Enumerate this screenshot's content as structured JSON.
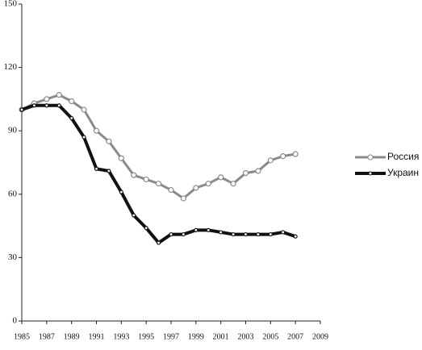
{
  "chart_data": {
    "type": "line",
    "x": [
      1985,
      1986,
      1987,
      1988,
      1989,
      1990,
      1991,
      1992,
      1993,
      1994,
      1995,
      1996,
      1997,
      1998,
      1999,
      2000,
      2001,
      2002,
      2003,
      2004,
      2005,
      2006,
      2007
    ],
    "series": [
      {
        "name": "Россия",
        "color": "#8a8a8a",
        "values": [
          100,
          103,
          105,
          107,
          104,
          100,
          90,
          85,
          77,
          69,
          67,
          65,
          62,
          58,
          63,
          65,
          68,
          65,
          70,
          71,
          76,
          78,
          79
        ]
      },
      {
        "name": "Украин",
        "color": "#111111",
        "values": [
          100,
          102,
          102,
          102,
          96,
          87,
          72,
          71,
          61,
          50,
          44,
          37,
          41,
          41,
          43,
          43,
          42,
          41,
          41,
          41,
          41,
          42,
          40
        ]
      }
    ],
    "xlim": [
      1985,
      2009
    ],
    "xticks": [
      1985,
      1987,
      1989,
      1991,
      1993,
      1995,
      1997,
      1999,
      2001,
      2003,
      2005,
      2007,
      2009
    ],
    "ylim": [
      0,
      150
    ],
    "yticks": [
      0,
      30,
      60,
      90,
      120,
      150
    ],
    "legend": "right"
  }
}
